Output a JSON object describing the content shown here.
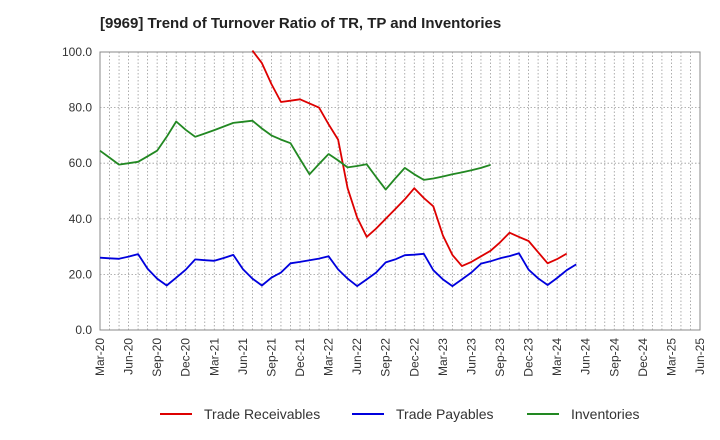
{
  "chart_data": {
    "type": "line",
    "title": "[9969]  Trend of Turnover Ratio of TR, TP and Inventories",
    "xlabel": "",
    "ylabel": "",
    "ylim": [
      0,
      100
    ],
    "yticks": [
      "0.0",
      "20.0",
      "40.0",
      "60.0",
      "80.0",
      "100.0"
    ],
    "xticks": [
      "Mar-20",
      "Jun-20",
      "Sep-20",
      "Dec-20",
      "Mar-21",
      "Jun-21",
      "Sep-21",
      "Dec-21",
      "Mar-22",
      "Jun-22",
      "Sep-22",
      "Dec-22",
      "Mar-23",
      "Jun-23",
      "Sep-23",
      "Dec-23",
      "Mar-24",
      "Jun-24",
      "Sep-24",
      "Dec-24",
      "Mar-25",
      "Jun-25"
    ],
    "grid": true,
    "legend_position": "bottom",
    "series": [
      {
        "name": "Trade Receivables",
        "color": "#dd0000",
        "values": [
          null,
          null,
          null,
          null,
          null,
          null,
          null,
          null,
          null,
          null,
          null,
          null,
          null,
          null,
          null,
          null,
          100.5,
          96,
          88.5,
          82,
          82.5,
          83,
          81.5,
          80,
          74,
          68.5,
          51,
          40.5,
          33.5,
          36.5,
          40,
          43.5,
          47,
          51,
          47.5,
          44.5,
          34,
          27,
          23,
          24.5,
          26.5,
          28.5,
          31.5,
          35,
          33.5,
          32,
          28,
          24,
          25.5,
          27.5
        ]
      },
      {
        "name": "Trade Payables",
        "color": "#0000dd",
        "values": [
          26,
          25.8,
          25.6,
          26.4,
          27.3,
          22,
          18.5,
          16,
          18.8,
          21.7,
          25.4,
          25.1,
          24.9,
          25.9,
          27,
          21.9,
          18.5,
          16,
          18.8,
          20.7,
          24,
          24.5,
          25.1,
          25.7,
          26.5,
          21.8,
          18.5,
          15.8,
          18.2,
          20.7,
          24.3,
          25.4,
          26.9,
          27.1,
          27.4,
          21.5,
          18.2,
          15.8,
          18.2,
          20.7,
          23.9,
          24.7,
          25.8,
          26.6,
          27.6,
          21.7,
          18.6,
          16.2,
          18.7,
          21.5,
          23.6
        ]
      },
      {
        "name": "Inventories",
        "color": "#228822",
        "values": [
          64.5,
          62,
          59.5,
          60,
          60.5,
          62.5,
          64.5,
          69.5,
          75,
          72,
          69.5,
          70.7,
          71.9,
          73.2,
          74.5,
          74.9,
          75.3,
          72.5,
          70,
          68.5,
          67.2,
          61.5,
          56,
          59.7,
          63.3,
          61,
          58.5,
          59,
          59.6,
          55,
          50.5,
          54.5,
          58.3,
          56,
          54,
          54.5,
          55.2,
          56,
          56.7,
          57.5,
          58.3,
          59.4
        ]
      }
    ]
  }
}
